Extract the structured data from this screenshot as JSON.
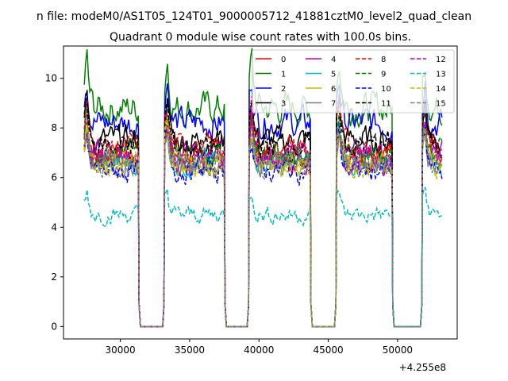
{
  "chart_data": {
    "type": "line",
    "suptitle": "n file: modeM0/AS1T05_124T01_9000005712_41881cztM0_level2_quad_clean",
    "title": "Quadrant 0 module wise count rates with 100.0s bins.",
    "xlabel": "",
    "ylabel": "",
    "x_offset_label": "+4.255e8",
    "xlim": [
      25900,
      54300
    ],
    "ylim": [
      -0.5,
      11.3
    ],
    "x_ticks": [
      30000,
      35000,
      40000,
      45000,
      50000
    ],
    "x_tick_labels": [
      "30000",
      "35000",
      "40000",
      "45000",
      "50000"
    ],
    "y_ticks": [
      0,
      2,
      4,
      6,
      8,
      10
    ],
    "y_tick_labels": [
      "0",
      "2",
      "4",
      "6",
      "8",
      "10"
    ],
    "grid": false,
    "legend_position": "top-right",
    "segments": [
      {
        "start": 27400,
        "end": 31300
      },
      {
        "start": 33200,
        "end": 37500
      },
      {
        "start": 39300,
        "end": 43700
      },
      {
        "start": 45600,
        "end": 49600
      },
      {
        "start": 51800,
        "end": 53200
      }
    ],
    "series": [
      {
        "name": "0",
        "color": "#ff0000",
        "dash": "solid",
        "level": 6.9
      },
      {
        "name": "1",
        "color": "#008000",
        "dash": "solid",
        "level": 8.8
      },
      {
        "name": "2",
        "color": "#0000ff",
        "dash": "solid",
        "level": 8.2
      },
      {
        "name": "3",
        "color": "#000000",
        "dash": "solid",
        "level": 7.5
      },
      {
        "name": "4",
        "color": "#bf00bf",
        "dash": "solid",
        "level": 6.9
      },
      {
        "name": "5",
        "color": "#00bfbf",
        "dash": "solid",
        "level": 6.6
      },
      {
        "name": "6",
        "color": "#bfbf00",
        "dash": "solid",
        "level": 6.6
      },
      {
        "name": "7",
        "color": "#808080",
        "dash": "solid",
        "level": 6.5
      },
      {
        "name": "8",
        "color": "#ff0000",
        "dash": "dashed",
        "level": 7.2
      },
      {
        "name": "9",
        "color": "#008000",
        "dash": "dashed",
        "level": 7.0
      },
      {
        "name": "10",
        "color": "#0000ff",
        "dash": "dashed",
        "level": 6.3
      },
      {
        "name": "11",
        "color": "#000000",
        "dash": "dashed",
        "level": 7.3
      },
      {
        "name": "12",
        "color": "#bf00bf",
        "dash": "dashed",
        "level": 6.7
      },
      {
        "name": "13",
        "color": "#00bfbf",
        "dash": "dashed",
        "level": 4.5
      },
      {
        "name": "14",
        "color": "#bfbf00",
        "dash": "dashed",
        "level": 6.5
      },
      {
        "name": "15",
        "color": "#808080",
        "dash": "dashed",
        "level": 6.6
      }
    ]
  }
}
